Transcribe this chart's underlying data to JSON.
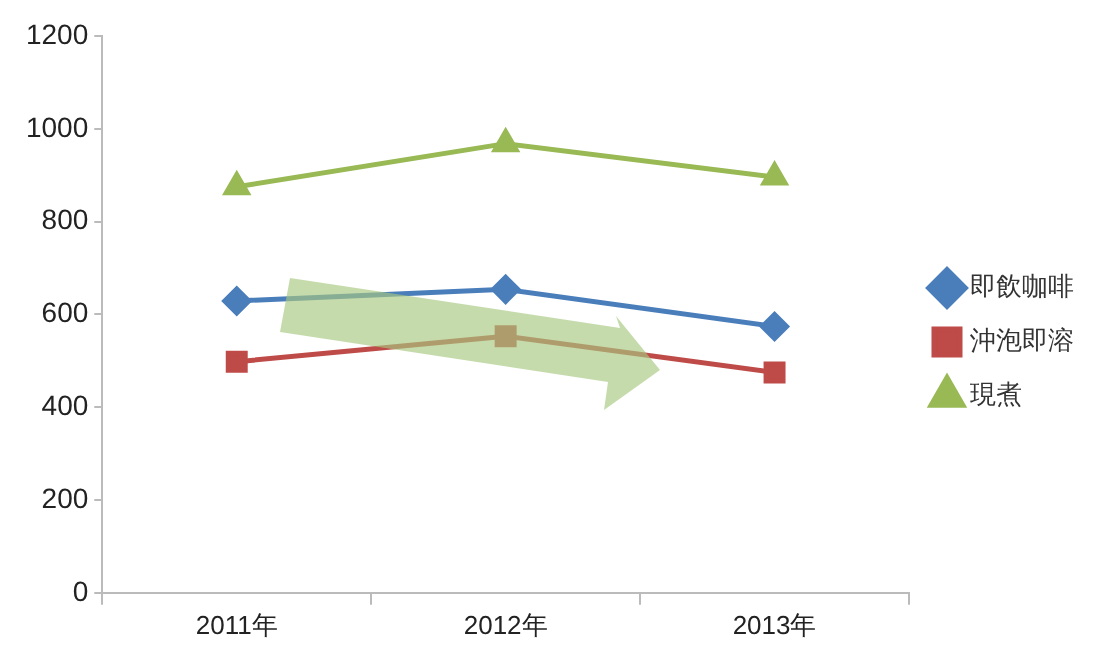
{
  "chart_data": {
    "type": "line",
    "categories": [
      "2011年",
      "2012年",
      "2013年"
    ],
    "series": [
      {
        "name": "即飲咖啡",
        "color": "#4a7ebb",
        "marker": "diamond",
        "values": [
          629,
          654,
          574
        ]
      },
      {
        "name": "沖泡即溶",
        "color": "#be4b48",
        "marker": "square",
        "values": [
          498,
          553,
          475
        ]
      },
      {
        "name": "現煮",
        "color": "#98b954",
        "marker": "triangle",
        "values": [
          875,
          968,
          896
        ]
      }
    ],
    "ylim": [
      0,
      1200
    ],
    "yticks": [
      0,
      200,
      400,
      600,
      800,
      1000,
      1200
    ],
    "grid": false,
    "legend": "right",
    "line_style": "solid"
  }
}
